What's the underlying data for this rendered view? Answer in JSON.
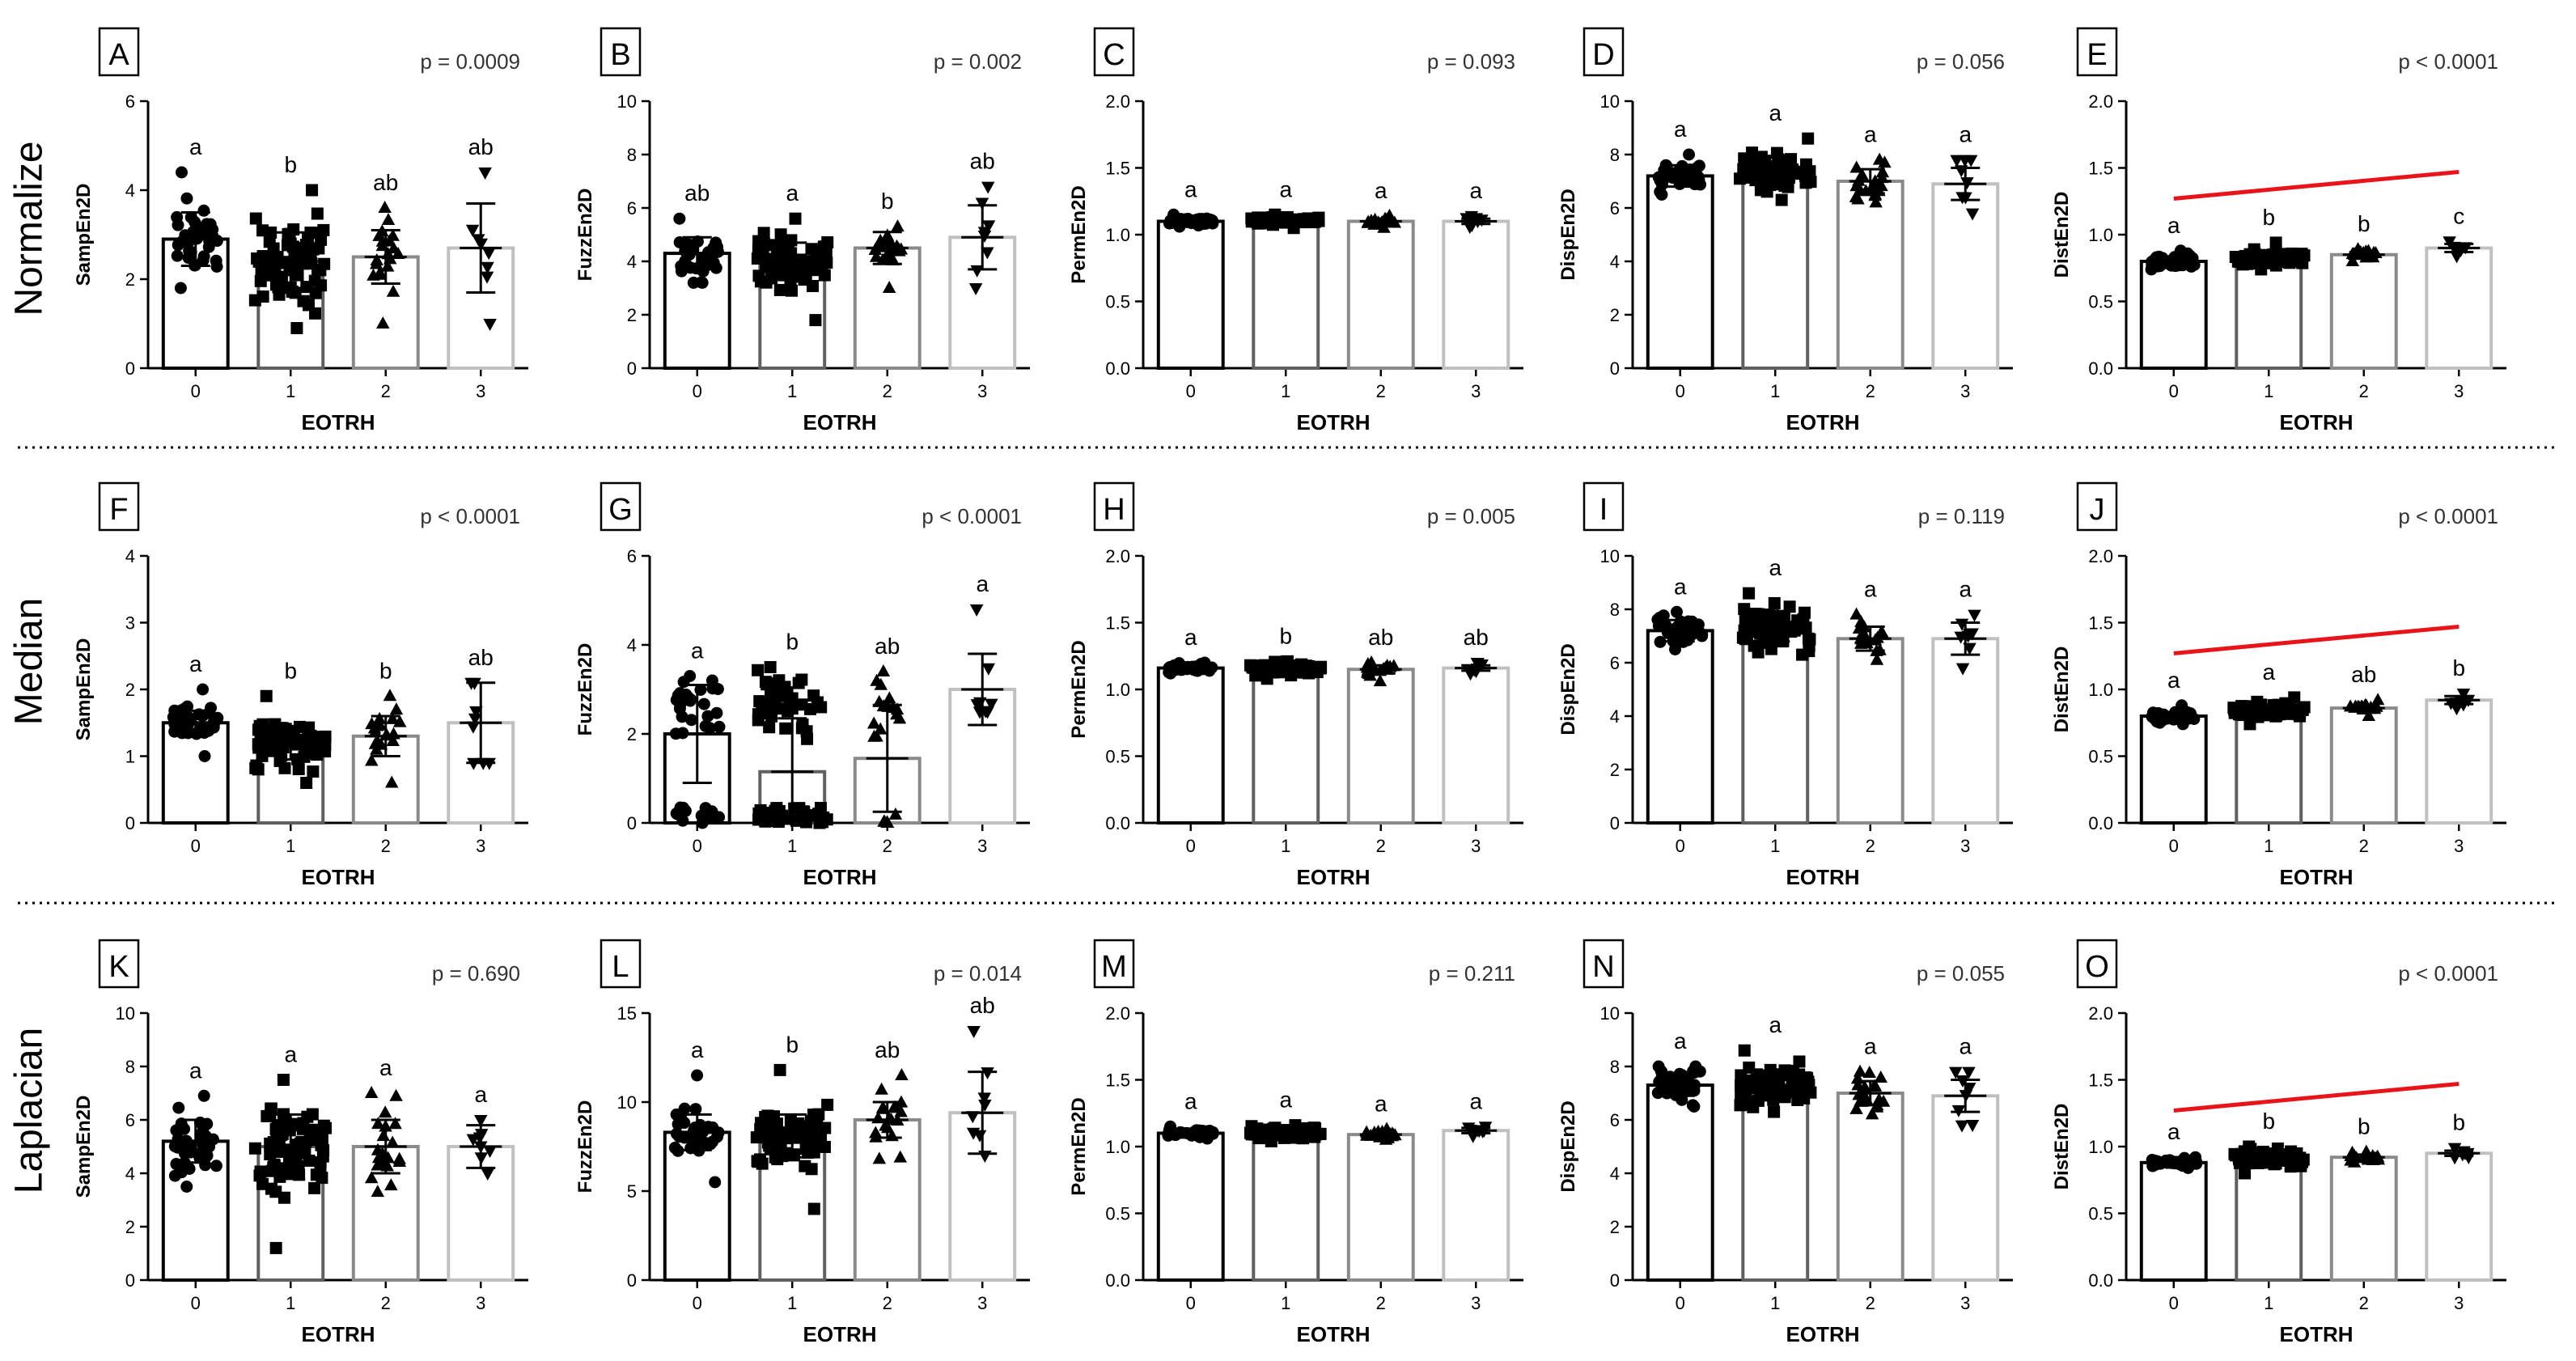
{
  "figure": {
    "x_label": "EOTRH",
    "row_labels": [
      "Normalize",
      "Median",
      "Laplacian"
    ]
  },
  "chart_data": [
    {
      "type": "bar",
      "letter": "A",
      "pvalue": "p = 0.0009",
      "ylabel": "SampEn2D",
      "ylim": [
        0,
        6
      ],
      "yticks": [
        "0",
        "2",
        "4",
        "6"
      ],
      "categories": [
        "0",
        "1",
        "2",
        "3"
      ],
      "xlabel": "EOTRH",
      "means": [
        2.9,
        2.4,
        2.5,
        2.7
      ],
      "sd": [
        0.6,
        0.65,
        0.6,
        1.0
      ],
      "ranges": [
        [
          1.8,
          4.4
        ],
        [
          0.9,
          4.0
        ],
        [
          1.0,
          3.6
        ],
        [
          1.0,
          4.4
        ]
      ],
      "n": [
        40,
        75,
        20,
        8
      ],
      "markers": [
        "circle",
        "square",
        "triangle",
        "tri-down"
      ],
      "sig": [
        "a",
        "b",
        "ab",
        "ab"
      ],
      "trend": false
    },
    {
      "type": "bar",
      "letter": "B",
      "pvalue": "p = 0.002",
      "ylabel": "FuzzEn2D",
      "ylim": [
        0,
        10
      ],
      "yticks": [
        "0",
        "2",
        "4",
        "6",
        "8",
        "10"
      ],
      "categories": [
        "0",
        "1",
        "2",
        "3"
      ],
      "xlabel": "EOTRH",
      "means": [
        4.3,
        4.0,
        4.5,
        4.9
      ],
      "sd": [
        0.6,
        0.7,
        0.6,
        1.2
      ],
      "ranges": [
        [
          3.2,
          5.6
        ],
        [
          1.8,
          5.6
        ],
        [
          3.0,
          5.3
        ],
        [
          3.0,
          6.8
        ]
      ],
      "n": [
        40,
        75,
        20,
        8
      ],
      "markers": [
        "circle",
        "square",
        "triangle",
        "tri-down"
      ],
      "sig": [
        "ab",
        "a",
        "b",
        "ab"
      ],
      "trend": false
    },
    {
      "type": "bar",
      "letter": "C",
      "pvalue": "p = 0.093",
      "ylabel": "PermEn2D",
      "ylim": [
        0,
        2
      ],
      "yticks": [
        "0.0",
        "0.5",
        "1.0",
        "1.5",
        "2.0"
      ],
      "categories": [
        "0",
        "1",
        "2",
        "3"
      ],
      "xlabel": "EOTRH",
      "means": [
        1.1,
        1.1,
        1.1,
        1.1
      ],
      "sd": [
        0.02,
        0.02,
        0.02,
        0.02
      ],
      "ranges": [
        [
          1.06,
          1.15
        ],
        [
          1.05,
          1.15
        ],
        [
          1.05,
          1.14
        ],
        [
          1.06,
          1.14
        ]
      ],
      "n": [
        40,
        75,
        20,
        8
      ],
      "markers": [
        "circle",
        "square",
        "triangle",
        "tri-down"
      ],
      "sig": [
        "a",
        "a",
        "a",
        "a"
      ],
      "trend": false
    },
    {
      "type": "bar",
      "letter": "D",
      "pvalue": "p = 0.056",
      "ylabel": "DispEn2D",
      "ylim": [
        0,
        10
      ],
      "yticks": [
        "0",
        "2",
        "4",
        "6",
        "8",
        "10"
      ],
      "categories": [
        "0",
        "1",
        "2",
        "3"
      ],
      "xlabel": "EOTRH",
      "means": [
        7.2,
        7.3,
        7.0,
        6.9
      ],
      "sd": [
        0.4,
        0.45,
        0.45,
        0.6
      ],
      "ranges": [
        [
          6.5,
          8.0
        ],
        [
          6.3,
          8.6
        ],
        [
          6.2,
          7.8
        ],
        [
          5.8,
          7.8
        ]
      ],
      "n": [
        40,
        75,
        20,
        8
      ],
      "markers": [
        "circle",
        "square",
        "triangle",
        "tri-down"
      ],
      "sig": [
        "a",
        "a",
        "a",
        "a"
      ],
      "trend": false
    },
    {
      "type": "bar",
      "letter": "E",
      "pvalue": "p < 0.0001",
      "ylabel": "DistEn2D",
      "ylim": [
        0,
        2
      ],
      "yticks": [
        "0.0",
        "0.5",
        "1.0",
        "1.5",
        "2.0"
      ],
      "categories": [
        "0",
        "1",
        "2",
        "3"
      ],
      "xlabel": "EOTRH",
      "means": [
        0.8,
        0.83,
        0.85,
        0.9
      ],
      "sd": [
        0.03,
        0.04,
        0.02,
        0.03
      ],
      "ranges": [
        [
          0.74,
          0.88
        ],
        [
          0.74,
          0.94
        ],
        [
          0.8,
          0.89
        ],
        [
          0.84,
          0.95
        ]
      ],
      "n": [
        40,
        75,
        20,
        8
      ],
      "markers": [
        "circle",
        "square",
        "triangle",
        "tri-down"
      ],
      "sig": [
        "a",
        "b",
        "b",
        "c"
      ],
      "trend": true,
      "trend_y": [
        1.27,
        1.47
      ]
    },
    {
      "type": "bar",
      "letter": "F",
      "pvalue": "p < 0.0001",
      "ylabel": "SampEn2D",
      "ylim": [
        0,
        4
      ],
      "yticks": [
        "0",
        "1",
        "2",
        "3",
        "4"
      ],
      "categories": [
        "0",
        "1",
        "2",
        "3"
      ],
      "xlabel": "EOTRH",
      "means": [
        1.5,
        1.2,
        1.3,
        1.5
      ],
      "sd": [
        0.18,
        0.25,
        0.3,
        0.6
      ],
      "ranges": [
        [
          1.0,
          2.0
        ],
        [
          0.6,
          1.9
        ],
        [
          0.6,
          1.9
        ],
        [
          0.9,
          2.1
        ]
      ],
      "n": [
        40,
        75,
        20,
        8
      ],
      "markers": [
        "circle",
        "square",
        "triangle",
        "tri-down"
      ],
      "sig": [
        "a",
        "b",
        "b",
        "ab"
      ],
      "trend": false
    },
    {
      "type": "bar",
      "letter": "G",
      "pvalue": "p < 0.0001",
      "ylabel": "FuzzEn2D",
      "ylim": [
        0,
        6
      ],
      "yticks": [
        "0",
        "2",
        "4",
        "6"
      ],
      "categories": [
        "0",
        "1",
        "2",
        "3"
      ],
      "xlabel": "EOTRH",
      "means": [
        2.0,
        1.15,
        1.45,
        3.0
      ],
      "sd": [
        1.1,
        1.2,
        1.2,
        0.8
      ],
      "ranges": [
        [
          0,
          3.3
        ],
        [
          0,
          3.5
        ],
        [
          0,
          3.4
        ],
        [
          2.5,
          4.8
        ]
      ],
      "n": [
        40,
        75,
        20,
        8
      ],
      "markers": [
        "circle",
        "square",
        "triangle",
        "tri-down"
      ],
      "sig": [
        "a",
        "b",
        "ab",
        "a"
      ],
      "trend": false,
      "split": true
    },
    {
      "type": "bar",
      "letter": "H",
      "pvalue": "p = 0.005",
      "ylabel": "PermEn2D",
      "ylim": [
        0,
        2
      ],
      "yticks": [
        "0.0",
        "0.5",
        "1.0",
        "1.5",
        "2.0"
      ],
      "categories": [
        "0",
        "1",
        "2",
        "3"
      ],
      "xlabel": "EOTRH",
      "means": [
        1.16,
        1.15,
        1.15,
        1.16
      ],
      "sd": [
        0.02,
        0.03,
        0.03,
        0.02
      ],
      "ranges": [
        [
          1.12,
          1.2
        ],
        [
          1.08,
          1.21
        ],
        [
          1.06,
          1.2
        ],
        [
          1.12,
          1.2
        ]
      ],
      "n": [
        40,
        75,
        20,
        8
      ],
      "markers": [
        "circle",
        "square",
        "triangle",
        "tri-down"
      ],
      "sig": [
        "a",
        "b",
        "ab",
        "ab"
      ],
      "trend": false
    },
    {
      "type": "bar",
      "letter": "I",
      "pvalue": "p = 0.119",
      "ylabel": "DispEn2D",
      "ylim": [
        0,
        10
      ],
      "yticks": [
        "0",
        "2",
        "4",
        "6",
        "8",
        "10"
      ],
      "categories": [
        "0",
        "1",
        "2",
        "3"
      ],
      "xlabel": "EOTRH",
      "means": [
        7.2,
        7.3,
        6.9,
        6.9
      ],
      "sd": [
        0.4,
        0.5,
        0.45,
        0.6
      ],
      "ranges": [
        [
          6.5,
          7.9
        ],
        [
          6.3,
          8.6
        ],
        [
          6.1,
          7.8
        ],
        [
          5.8,
          7.8
        ]
      ],
      "n": [
        40,
        75,
        20,
        8
      ],
      "markers": [
        "circle",
        "square",
        "triangle",
        "tri-down"
      ],
      "sig": [
        "a",
        "a",
        "a",
        "a"
      ],
      "trend": false
    },
    {
      "type": "bar",
      "letter": "J",
      "pvalue": "p < 0.0001",
      "ylabel": "DistEn2D",
      "ylim": [
        0,
        2
      ],
      "yticks": [
        "0.0",
        "0.5",
        "1.0",
        "1.5",
        "2.0"
      ],
      "categories": [
        "0",
        "1",
        "2",
        "3"
      ],
      "xlabel": "EOTRH",
      "means": [
        0.8,
        0.84,
        0.86,
        0.92
      ],
      "sd": [
        0.03,
        0.04,
        0.02,
        0.03
      ],
      "ranges": [
        [
          0.74,
          0.88
        ],
        [
          0.74,
          0.94
        ],
        [
          0.8,
          0.92
        ],
        [
          0.86,
          0.97
        ]
      ],
      "n": [
        40,
        75,
        20,
        8
      ],
      "markers": [
        "circle",
        "square",
        "triangle",
        "tri-down"
      ],
      "sig": [
        "a",
        "a",
        "ab",
        "b"
      ],
      "trend": true,
      "trend_y": [
        1.27,
        1.47
      ]
    },
    {
      "type": "bar",
      "letter": "K",
      "pvalue": "p = 0.690",
      "ylabel": "SampEn2D",
      "ylim": [
        0,
        10
      ],
      "yticks": [
        "0",
        "2",
        "4",
        "6",
        "8",
        "10"
      ],
      "categories": [
        "0",
        "1",
        "2",
        "3"
      ],
      "xlabel": "EOTRH",
      "means": [
        5.2,
        5.0,
        5.0,
        5.0
      ],
      "sd": [
        0.8,
        1.2,
        1.0,
        0.8
      ],
      "ranges": [
        [
          3.5,
          6.9
        ],
        [
          1.2,
          7.5
        ],
        [
          3.3,
          7.0
        ],
        [
          4.0,
          6.0
        ]
      ],
      "n": [
        40,
        75,
        20,
        8
      ],
      "markers": [
        "circle",
        "square",
        "triangle",
        "tri-down"
      ],
      "sig": [
        "a",
        "a",
        "a",
        "a"
      ],
      "trend": false
    },
    {
      "type": "bar",
      "letter": "L",
      "pvalue": "p = 0.014",
      "ylabel": "FuzzEn2D",
      "ylim": [
        0,
        15
      ],
      "yticks": [
        "0",
        "5",
        "10",
        "15"
      ],
      "categories": [
        "0",
        "1",
        "2",
        "3"
      ],
      "xlabel": "EOTRH",
      "means": [
        8.3,
        8.1,
        9.0,
        9.4
      ],
      "sd": [
        1.0,
        1.2,
        1.0,
        2.3
      ],
      "ranges": [
        [
          5.5,
          11.5
        ],
        [
          4.0,
          11.8
        ],
        [
          6.8,
          11.5
        ],
        [
          7.0,
          14.0
        ]
      ],
      "n": [
        40,
        75,
        20,
        8
      ],
      "markers": [
        "circle",
        "square",
        "triangle",
        "tri-down"
      ],
      "sig": [
        "a",
        "b",
        "ab",
        "ab"
      ],
      "trend": false
    },
    {
      "type": "bar",
      "letter": "M",
      "pvalue": "p = 0.211",
      "ylabel": "PermEn2D",
      "ylim": [
        0,
        2
      ],
      "yticks": [
        "0.0",
        "0.5",
        "1.0",
        "1.5",
        "2.0"
      ],
      "categories": [
        "0",
        "1",
        "2",
        "3"
      ],
      "xlabel": "EOTRH",
      "means": [
        1.1,
        1.1,
        1.09,
        1.12
      ],
      "sd": [
        0.02,
        0.03,
        0.02,
        0.02
      ],
      "ranges": [
        [
          1.06,
          1.15
        ],
        [
          1.04,
          1.16
        ],
        [
          1.05,
          1.13
        ],
        [
          1.08,
          1.15
        ]
      ],
      "n": [
        40,
        75,
        20,
        8
      ],
      "markers": [
        "circle",
        "square",
        "triangle",
        "tri-down"
      ],
      "sig": [
        "a",
        "a",
        "a",
        "a"
      ],
      "trend": false
    },
    {
      "type": "bar",
      "letter": "N",
      "pvalue": "p = 0.055",
      "ylabel": "DispEn2D",
      "ylim": [
        0,
        10
      ],
      "yticks": [
        "0",
        "2",
        "4",
        "6",
        "8",
        "10"
      ],
      "categories": [
        "0",
        "1",
        "2",
        "3"
      ],
      "xlabel": "EOTRH",
      "means": [
        7.3,
        7.3,
        7.0,
        6.9
      ],
      "sd": [
        0.4,
        0.5,
        0.45,
        0.6
      ],
      "ranges": [
        [
          6.5,
          8.0
        ],
        [
          6.3,
          8.6
        ],
        [
          6.2,
          7.8
        ],
        [
          5.8,
          7.8
        ]
      ],
      "n": [
        40,
        75,
        20,
        8
      ],
      "markers": [
        "circle",
        "square",
        "triangle",
        "tri-down"
      ],
      "sig": [
        "a",
        "a",
        "a",
        "a"
      ],
      "trend": false
    },
    {
      "type": "bar",
      "letter": "O",
      "pvalue": "p < 0.0001",
      "ylabel": "DistEn2D",
      "ylim": [
        0,
        2
      ],
      "yticks": [
        "0.0",
        "0.5",
        "1.0",
        "1.5",
        "2.0"
      ],
      "categories": [
        "0",
        "1",
        "2",
        "3"
      ],
      "xlabel": "EOTRH",
      "means": [
        0.88,
        0.92,
        0.92,
        0.95
      ],
      "sd": [
        0.02,
        0.04,
        0.02,
        0.02
      ],
      "ranges": [
        [
          0.84,
          0.92
        ],
        [
          0.8,
          1.0
        ],
        [
          0.88,
          0.96
        ],
        [
          0.92,
          0.99
        ]
      ],
      "n": [
        40,
        75,
        20,
        8
      ],
      "markers": [
        "circle",
        "square",
        "triangle",
        "tri-down"
      ],
      "sig": [
        "a",
        "b",
        "b",
        "b"
      ],
      "trend": true,
      "trend_y": [
        1.27,
        1.47
      ]
    }
  ]
}
